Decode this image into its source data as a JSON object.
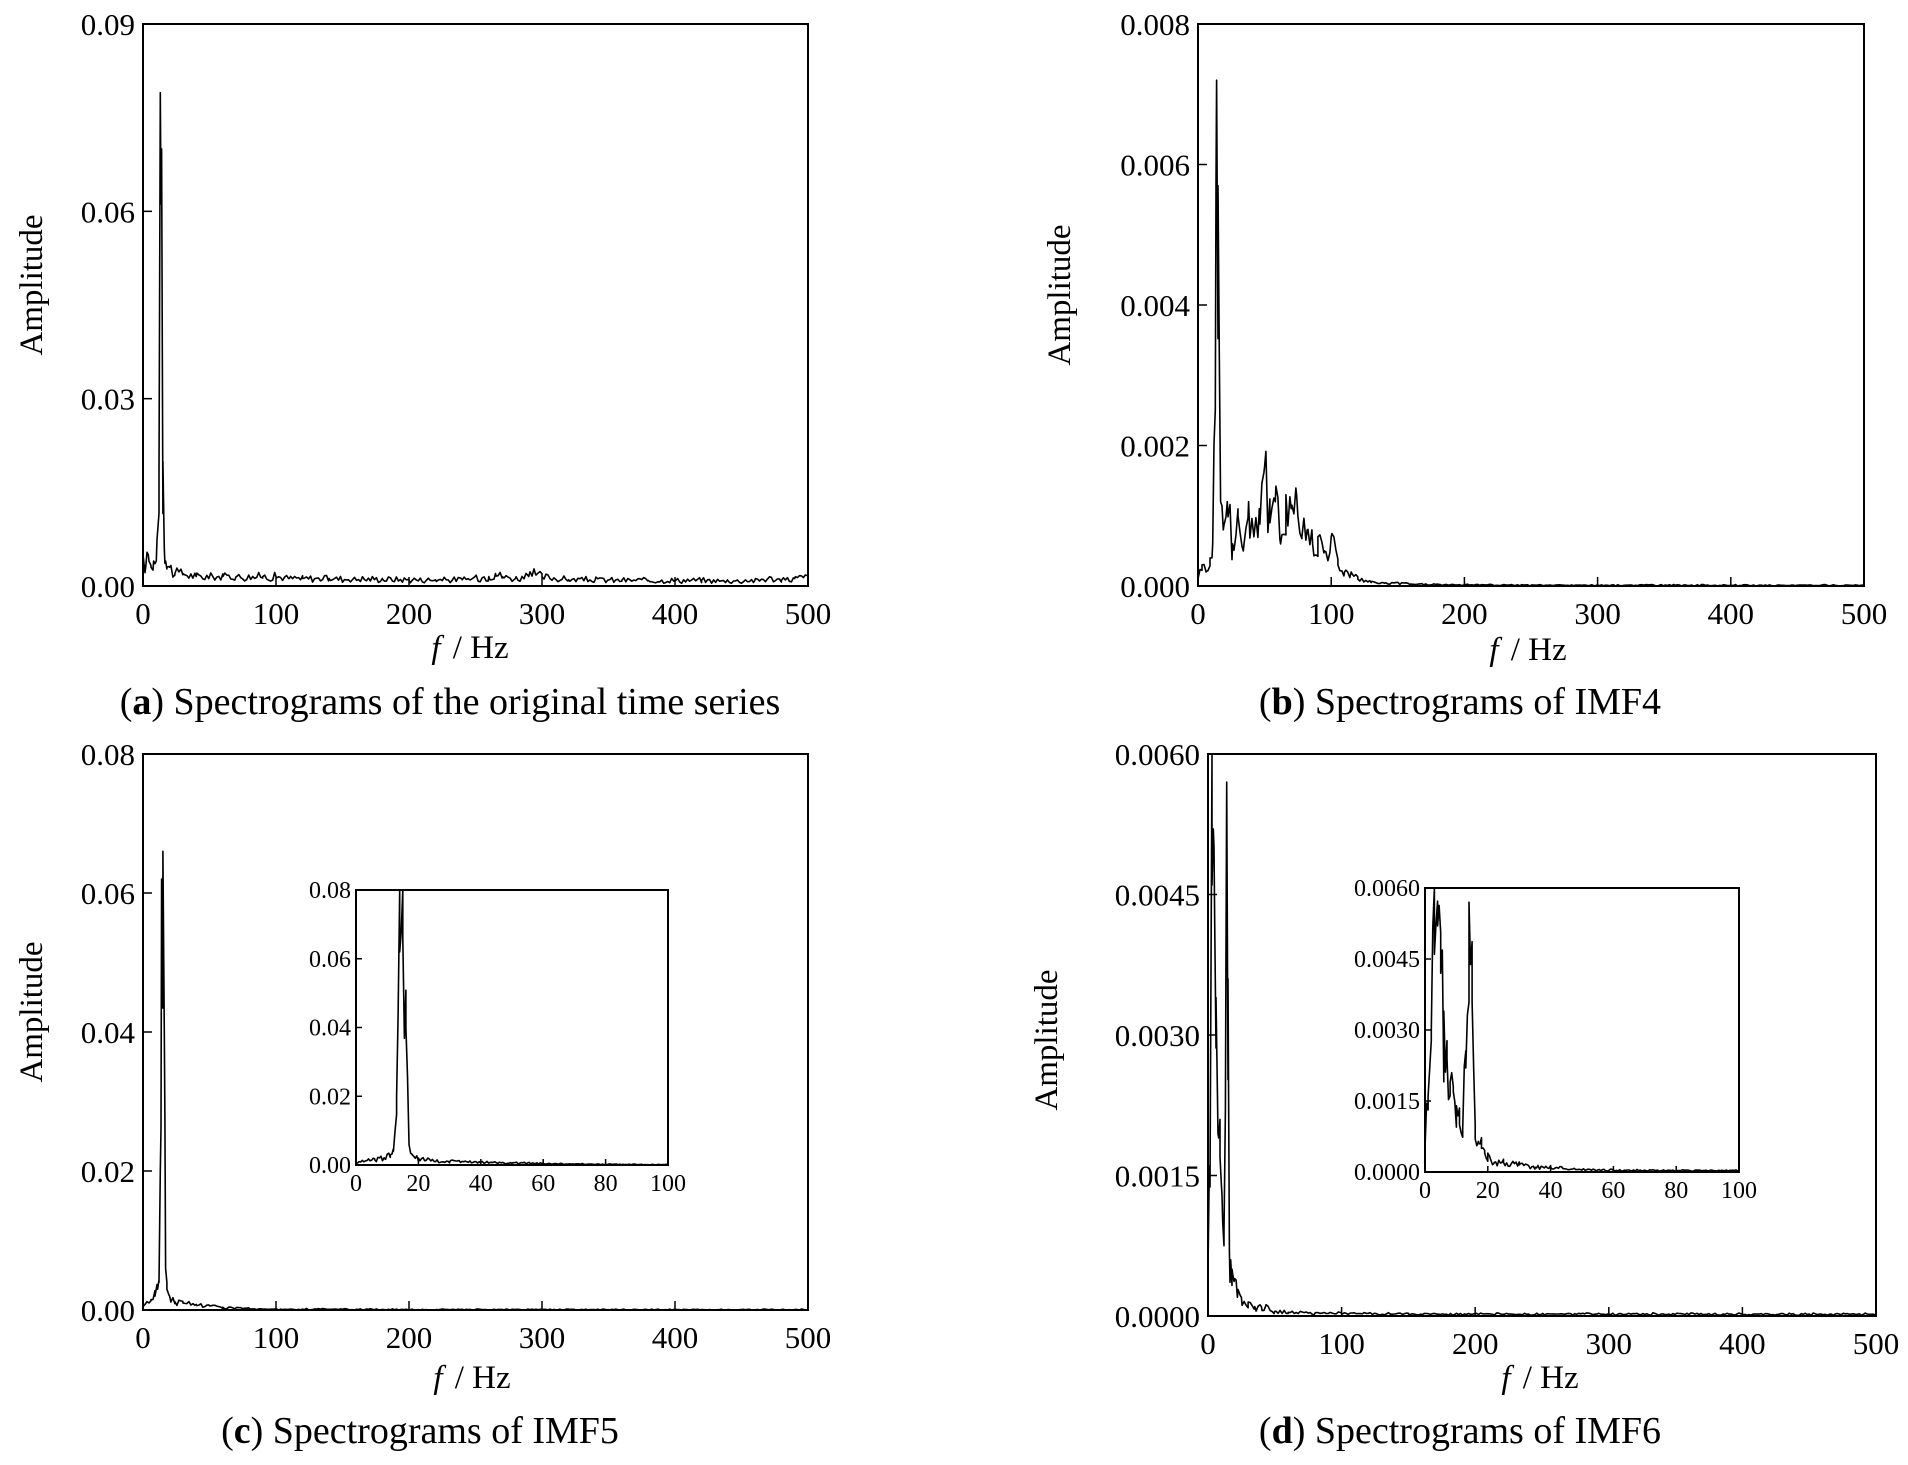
{
  "figure": {
    "panels": [
      {
        "id": "a",
        "caption_letter": "a",
        "caption_text": "Spectrograms of the original time series",
        "ylabel": "Amplitude",
        "xlabel_italic": "f",
        "xlabel_rest": "/ Hz"
      },
      {
        "id": "b",
        "caption_letter": "b",
        "caption_text": "Spectrograms of IMF4",
        "ylabel": "Amplitude",
        "xlabel_italic": "f",
        "xlabel_rest": "/ Hz"
      },
      {
        "id": "c",
        "caption_letter": "c",
        "caption_text": "Spectrograms of IMF5",
        "ylabel": "Amplitude",
        "xlabel_italic": "f",
        "xlabel_rest": "/ Hz"
      },
      {
        "id": "d",
        "caption_letter": "d",
        "caption_text": "Spectrograms of IMF6",
        "ylabel": "Amplitude",
        "xlabel_italic": "f",
        "xlabel_rest": "/ Hz"
      }
    ]
  },
  "chart_data": [
    {
      "type": "line",
      "panel": "a",
      "title": "",
      "xlabel": "f / Hz",
      "ylabel": "Amplitude",
      "xlim": [
        0,
        500
      ],
      "ylim": [
        0,
        0.09
      ],
      "xticks": [
        "0",
        "100",
        "200",
        "300",
        "400",
        "500"
      ],
      "yticks": [
        "0.00",
        "0.03",
        "0.06",
        "0.09"
      ],
      "grid": false,
      "series": [
        {
          "x": [
            0,
            2,
            4,
            6,
            8,
            10,
            12,
            13,
            14,
            15,
            16,
            17,
            18,
            20,
            24,
            30,
            40,
            50,
            60,
            70,
            80,
            90,
            100,
            110,
            120,
            140,
            160,
            180,
            200,
            220,
            240,
            260,
            265,
            270,
            280,
            290,
            295,
            300,
            320,
            340,
            360,
            380,
            400,
            420,
            440,
            460,
            470,
            480,
            490,
            500
          ],
          "y": [
            0.005,
            0.003,
            0.005,
            0.003,
            0.004,
            0.004,
            0.018,
            0.079,
            0.07,
            0.02,
            0.006,
            0.004,
            0.003,
            0.003,
            0.002,
            0.002,
            0.0015,
            0.0015,
            0.0015,
            0.0015,
            0.0015,
            0.0015,
            0.0015,
            0.0012,
            0.0012,
            0.0012,
            0.0011,
            0.0011,
            0.001,
            0.001,
            0.001,
            0.0015,
            0.002,
            0.0015,
            0.0012,
            0.0015,
            0.002,
            0.0015,
            0.001,
            0.001,
            0.0009,
            0.0009,
            0.0009,
            0.0009,
            0.0008,
            0.0009,
            0.0012,
            0.0009,
            0.0012,
            0.0015
          ]
        }
      ]
    },
    {
      "type": "line",
      "panel": "b",
      "title": "",
      "xlabel": "f / Hz",
      "ylabel": "Amplitude",
      "xlim": [
        0,
        500
      ],
      "ylim": [
        0,
        0.008
      ],
      "xticks": [
        "0",
        "100",
        "200",
        "300",
        "400",
        "500"
      ],
      "yticks": [
        "0.000",
        "0.002",
        "0.004",
        "0.006",
        "0.008"
      ],
      "grid": false,
      "series": [
        {
          "x": [
            0,
            3,
            6,
            9,
            11,
            13,
            14,
            15,
            16,
            17,
            19,
            22,
            26,
            30,
            34,
            38,
            42,
            46,
            50,
            54,
            58,
            62,
            66,
            70,
            74,
            78,
            82,
            86,
            90,
            95,
            100,
            105,
            110,
            115,
            120,
            130,
            140,
            160,
            180,
            200,
            250,
            300,
            350,
            400,
            450,
            500
          ],
          "y": [
            0.0001,
            0.0003,
            0.0002,
            0.0004,
            0.0006,
            0.0025,
            0.0072,
            0.0057,
            0.0033,
            0.0012,
            0.0008,
            0.0012,
            0.0006,
            0.001,
            0.0005,
            0.0012,
            0.0007,
            0.0011,
            0.0017,
            0.0009,
            0.0012,
            0.0006,
            0.0013,
            0.0011,
            0.0013,
            0.0007,
            0.0008,
            0.0006,
            0.0007,
            0.0005,
            0.0007,
            0.0003,
            0.0002,
            0.0002,
            0.0001,
            5e-05,
            4e-05,
            3e-05,
            2e-05,
            2e-05,
            1e-05,
            1e-05,
            1e-05,
            1e-05,
            1e-05,
            1e-05
          ]
        }
      ]
    },
    {
      "type": "line",
      "panel": "c",
      "title": "",
      "xlabel": "f / Hz",
      "ylabel": "Amplitude",
      "xlim": [
        0,
        500
      ],
      "ylim": [
        0,
        0.08
      ],
      "xticks": [
        "0",
        "100",
        "200",
        "300",
        "400",
        "500"
      ],
      "yticks": [
        "0.00",
        "0.02",
        "0.04",
        "0.06",
        "0.08"
      ],
      "grid": false,
      "series": [
        {
          "x": [
            0,
            3,
            6,
            9,
            11,
            12,
            13,
            14,
            15,
            16,
            17,
            18,
            20,
            24,
            30,
            40,
            50,
            60,
            70,
            80,
            100,
            150,
            200,
            250,
            300,
            350,
            400,
            450,
            500
          ],
          "y": [
            0.0005,
            0.0012,
            0.0015,
            0.002,
            0.003,
            0.004,
            0.02,
            0.062,
            0.066,
            0.04,
            0.006,
            0.003,
            0.002,
            0.0012,
            0.001,
            0.0008,
            0.0006,
            0.0004,
            0.0003,
            0.0002,
            0.0001,
            0.0001,
            5e-05,
            5e-05,
            5e-05,
            5e-05,
            5e-05,
            5e-05,
            5e-05
          ]
        }
      ],
      "inset": {
        "xlim": [
          0,
          100
        ],
        "ylim": [
          0,
          0.08
        ],
        "xticks": [
          "0",
          "20",
          "40",
          "60",
          "80",
          "100"
        ],
        "yticks": [
          "0.00",
          "0.02",
          "0.04",
          "0.06",
          "0.08"
        ]
      }
    },
    {
      "type": "line",
      "panel": "d",
      "title": "",
      "xlabel": "f / Hz",
      "ylabel": "Amplitude",
      "xlim": [
        0,
        500
      ],
      "ylim": [
        0,
        0.006
      ],
      "xticks": [
        "0",
        "100",
        "200",
        "300",
        "400",
        "500"
      ],
      "yticks": [
        "0.0000",
        "0.0015",
        "0.0030",
        "0.0045",
        "0.0060"
      ],
      "grid": false,
      "series": [
        {
          "x": [
            0,
            1,
            2,
            3,
            4,
            5,
            6,
            7,
            8,
            9,
            10,
            11,
            12,
            13,
            14,
            15,
            16,
            17,
            18,
            19,
            20,
            22,
            25,
            30,
            35,
            40,
            50,
            60,
            80,
            100,
            150,
            200,
            250,
            300,
            350,
            400,
            450,
            500
          ],
          "y": [
            0.0005,
            0.0016,
            0.003,
            0.0046,
            0.0052,
            0.0042,
            0.0034,
            0.0024,
            0.0019,
            0.0017,
            0.0014,
            0.001,
            0.0009,
            0.0022,
            0.0057,
            0.0036,
            0.0007,
            0.0006,
            0.0005,
            0.0004,
            0.0004,
            0.0002,
            0.0002,
            0.00015,
            0.0001,
            0.0001,
            5e-05,
            4e-05,
            3e-05,
            3e-05,
            2e-05,
            2e-05,
            2e-05,
            2e-05,
            2e-05,
            2e-05,
            2e-05,
            2e-05
          ]
        }
      ],
      "inset": {
        "xlim": [
          0,
          100
        ],
        "ylim": [
          0,
          0.006
        ],
        "xticks": [
          "0",
          "20",
          "40",
          "60",
          "80",
          "100"
        ],
        "yticks": [
          "0.0000",
          "0.0015",
          "0.0030",
          "0.0045",
          "0.0060"
        ]
      }
    }
  ]
}
